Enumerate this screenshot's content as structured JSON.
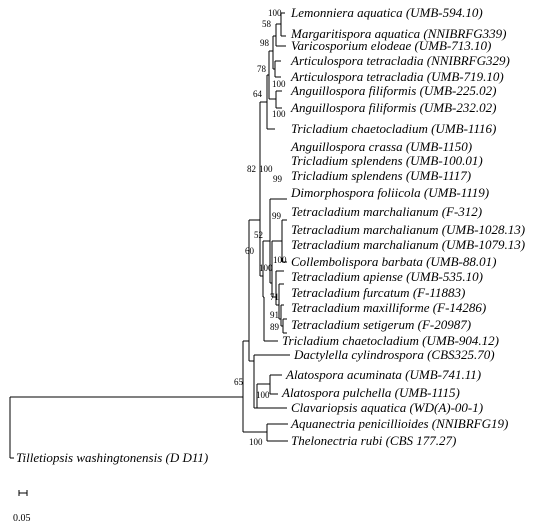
{
  "tree": {
    "taxa": [
      "Lemonniera aquatica (UMB-594.10)",
      "Margaritispora aquatica (NNIBRFG339)",
      "Varicosporium elodeae (UMB-713.10)",
      "Articulospora tetracladia (NNIBRFG329)",
      "Articulospora tetracladia (UMB-719.10)",
      "Anguillospora filiformis (UMB-225.02)",
      "Anguillospora filiformis (UMB-232.02)",
      "Tricladium chaetocladium (UMB-1116)",
      "Anguillospora crassa (UMB-1150)",
      "Tricladium splendens (UMB-100.01)",
      "Tricladium splendens (UMB-1117)",
      "Dimorphospora foliicola (UMB-1119)",
      "Tetracladium marchalianum (F-312)",
      "Tetracladium marchalianum (UMB-1028.13)",
      "Tetracladium marchalianum (UMB-1079.13)",
      "Collembolispora barbata (UMB-88.01)",
      "Tetracladium apiense (UMB-535.10)",
      "Tetracladium furcatum (F-11883)",
      "Tetracladium maxilliforme (F-14286)",
      "Tetracladium setigerum (F-20987)",
      "Tricladium chaetocladium (UMB-904.12)",
      "Dactylella cylindrospora (CBS325.70)",
      "Alatospora acuminata (UMB-741.11)",
      "Alatospora pulchella (UMB-1115)",
      "Clavariopsis aquatica (WD(A)-00-1)",
      "Aquanectria penicillioides (NNIBRFG19)",
      "Thelonectria rubi (CBS 177.27)",
      "Tilletiopsis washingtonensis (D D11)"
    ],
    "bootstrap": [
      "100",
      "58",
      "98",
      "78",
      "100",
      "64",
      "100",
      "82",
      "100",
      "99",
      "99",
      "52",
      "100",
      "100",
      "71",
      "91",
      "89",
      "60",
      "100",
      "65",
      "100"
    ],
    "scale_bar": "0.05"
  }
}
